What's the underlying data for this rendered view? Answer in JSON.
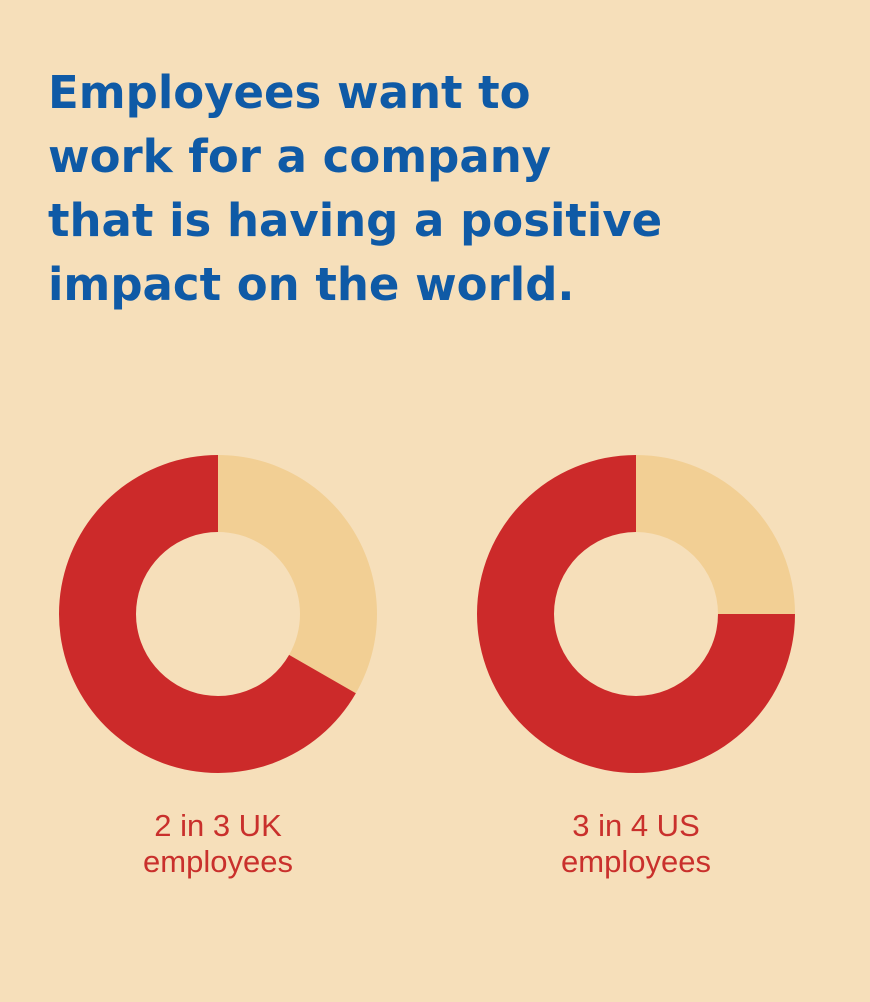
{
  "title": [
    "Employees want to",
    "work for a company",
    "that is having a positive",
    "impact on the world."
  ],
  "chart_data": [
    {
      "type": "pie",
      "donut": true,
      "values": [
        33.3,
        66.7
      ],
      "colors": [
        "#f2cf94",
        "#cc2a2a"
      ],
      "caption": [
        "2 in 3 UK",
        "employees"
      ]
    },
    {
      "type": "pie",
      "donut": true,
      "values": [
        25,
        75
      ],
      "colors": [
        "#f2cf94",
        "#cc2a2a"
      ],
      "caption": [
        "3 in 4 US",
        "employees"
      ]
    }
  ]
}
